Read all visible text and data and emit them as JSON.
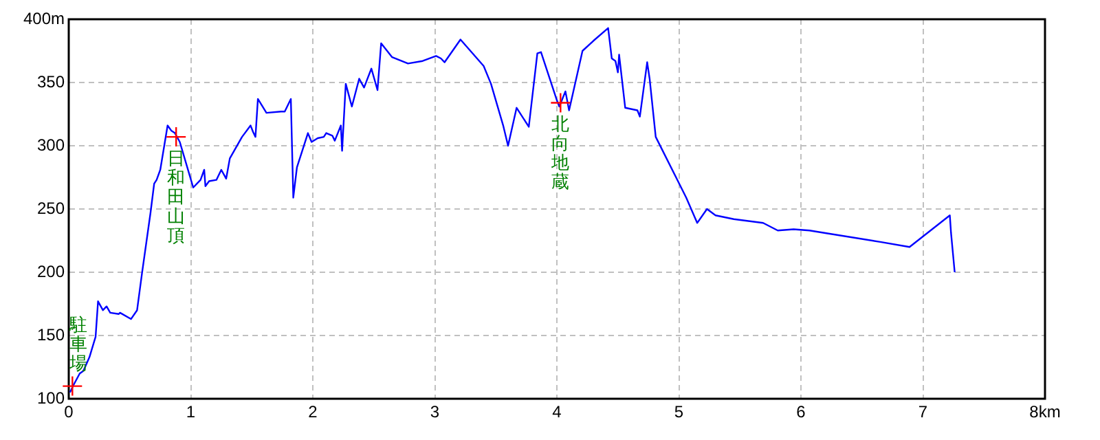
{
  "chart_data": {
    "type": "line",
    "grid": true,
    "marker": "none",
    "legend": false,
    "xlim": [
      0,
      8
    ],
    "xticks": [
      0,
      1,
      2,
      3,
      4,
      5,
      6,
      7,
      {
        "value": 8,
        "label": "8km"
      }
    ],
    "ylim": [
      100,
      400
    ],
    "yticks": [
      100,
      150,
      200,
      250,
      300,
      350,
      {
        "value": 400,
        "label": "400m"
      }
    ],
    "annotations": [
      {
        "text": "駐車場",
        "x": 0.03,
        "y": 110
      },
      {
        "text": "日和田山頂",
        "x": 0.88,
        "y": 307
      },
      {
        "text": "北向地蔵",
        "x": 4.03,
        "y": 334
      }
    ],
    "series": [
      {
        "color": "#0000ff",
        "x": [
          0.01,
          0.04,
          0.09,
          0.12,
          0.17,
          0.22,
          0.24,
          0.28,
          0.31,
          0.34,
          0.41,
          0.42,
          0.51,
          0.56,
          0.6,
          0.67,
          0.7,
          0.72,
          0.75,
          0.81,
          0.84,
          0.87,
          0.91,
          1.02,
          1.08,
          1.11,
          1.12,
          1.15,
          1.21,
          1.25,
          1.29,
          1.32,
          1.42,
          1.49,
          1.51,
          1.53,
          1.55,
          1.62,
          1.74,
          1.77,
          1.82,
          1.84,
          1.87,
          1.96,
          1.99,
          2.04,
          2.09,
          2.11,
          2.16,
          2.18,
          2.23,
          2.24,
          2.27,
          2.32,
          2.38,
          2.42,
          2.44,
          2.48,
          2.53,
          2.56,
          2.65,
          2.78,
          2.9,
          3.01,
          3.05,
          3.08,
          3.21,
          3.4,
          3.46,
          3.56,
          3.6,
          3.67,
          3.77,
          3.84,
          3.87,
          4.0,
          4.02,
          4.07,
          4.1,
          4.21,
          4.3,
          4.42,
          4.45,
          4.48,
          4.5,
          4.51,
          4.56,
          4.66,
          4.68,
          4.74,
          4.76,
          4.81,
          5.06,
          5.15,
          5.23,
          5.3,
          5.45,
          5.69,
          5.81,
          5.94,
          6.07,
          6.2,
          6.65,
          6.89,
          7.22,
          7.23,
          7.26
        ],
        "values": [
          105,
          111,
          120,
          122,
          133,
          149,
          177,
          170,
          173,
          168,
          167,
          168,
          163,
          170,
          199,
          247,
          270,
          273,
          281,
          316,
          312,
          310,
          303,
          267,
          273,
          281,
          268,
          272,
          273,
          281,
          274,
          290,
          307,
          316,
          311,
          307,
          337,
          326,
          327,
          327,
          337,
          259,
          283,
          310,
          303,
          306,
          307,
          310,
          308,
          304,
          316,
          296,
          349,
          331,
          353,
          346,
          351,
          361,
          344,
          381,
          370,
          365,
          367,
          371,
          369,
          366,
          384,
          363,
          349,
          316,
          300,
          330,
          315,
          373,
          374,
          336,
          331,
          343,
          328,
          375,
          383,
          393,
          369,
          367,
          358,
          372,
          330,
          328,
          323,
          366,
          353,
          307,
          259,
          239,
          250,
          245,
          242,
          239,
          233,
          234,
          233,
          231,
          224,
          220,
          245,
          231,
          200
        ]
      }
    ]
  }
}
